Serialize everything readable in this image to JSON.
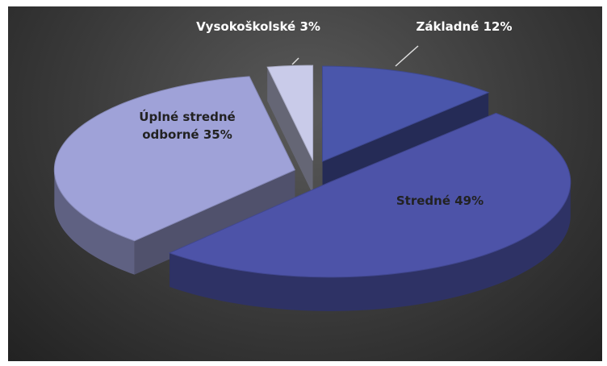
{
  "chart_data": {
    "type": "pie",
    "categories": [
      "Základné",
      "Stredné",
      "Úplné stredné odborné",
      "Vysokoškolské"
    ],
    "values": [
      12,
      49,
      35,
      3
    ],
    "value_labels": [
      "12%",
      "49%",
      "35%",
      "3%"
    ],
    "colors": [
      "#4a56ab",
      "#4d53a8",
      "#9fa2d8",
      "#c9cbe9"
    ]
  }
}
